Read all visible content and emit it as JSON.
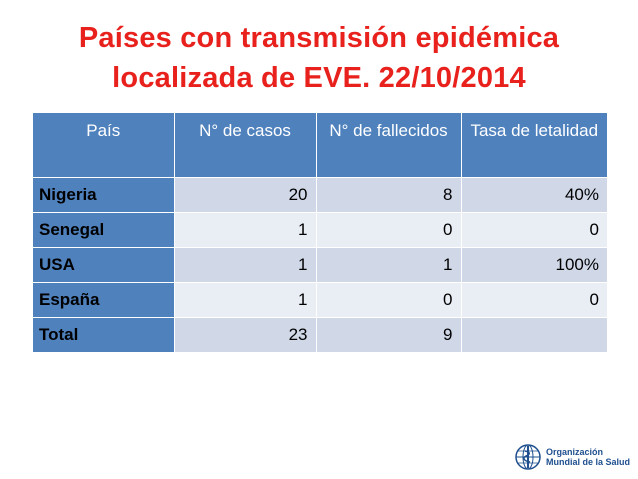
{
  "title": {
    "line1": "Países con transmisión epidémica",
    "line2": "localizada de EVE. 22/10/2014"
  },
  "table": {
    "headers": [
      "País",
      "N° de casos",
      "N° de fallecidos",
      "Tasa de letalidad"
    ],
    "rows": [
      [
        "Nigeria",
        "20",
        "8",
        "40%"
      ],
      [
        "Senegal",
        "1",
        "0",
        "0"
      ],
      [
        "USA",
        "1",
        "1",
        "100%"
      ],
      [
        "España",
        "1",
        "0",
        "0"
      ],
      [
        "Total",
        "23",
        "9",
        ""
      ]
    ]
  },
  "logo": {
    "line1": "Organización",
    "line2": "Mundial de la Salud"
  },
  "colors": {
    "title": "#e8211d",
    "header_bg": "#4f81bd",
    "row_odd": "#d0d8e8",
    "row_even": "#e9edf4"
  }
}
